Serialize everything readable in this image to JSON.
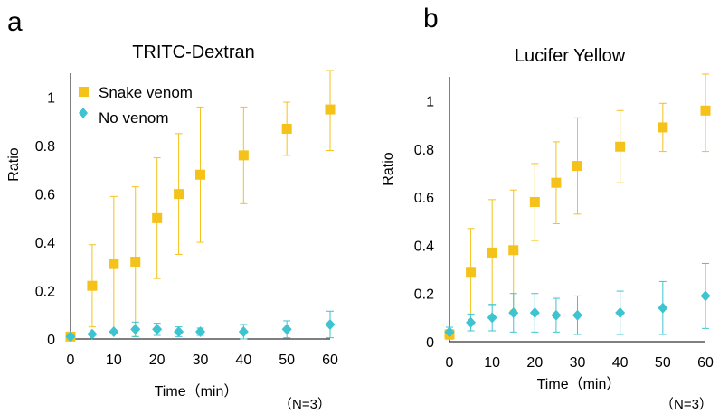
{
  "panels": [
    {
      "label": "a",
      "note": "（N=3）",
      "chart_data": {
        "type": "scatter",
        "title": "TRITC-Dextran",
        "xlabel": "Time（min）",
        "ylabel": "Ratio",
        "x_ticks": [
          0,
          10,
          20,
          30,
          40,
          50,
          60
        ],
        "y_ticks": [
          0,
          0.2,
          0.4,
          0.6,
          0.8,
          1
        ],
        "y_tick_labels": [
          "0",
          "0.2",
          "0.4",
          "0.6",
          "0.8",
          "1"
        ],
        "xlim": [
          0,
          60
        ],
        "ylim": [
          0,
          1.1
        ],
        "grid": false,
        "legend": "top-left",
        "series": [
          {
            "name": "Snake venom",
            "marker": "square",
            "color": "#F5C21A",
            "points": [
              {
                "x": 0,
                "y": 0.01,
                "err": 0.0
              },
              {
                "x": 5,
                "y": 0.22,
                "err": 0.17
              },
              {
                "x": 10,
                "y": 0.31,
                "err": 0.28
              },
              {
                "x": 15,
                "y": 0.32,
                "err": 0.31
              },
              {
                "x": 20,
                "y": 0.5,
                "err": 0.25
              },
              {
                "x": 25,
                "y": 0.6,
                "err": 0.25
              },
              {
                "x": 30,
                "y": 0.68,
                "err": 0.28
              },
              {
                "x": 40,
                "y": 0.76,
                "err": 0.2
              },
              {
                "x": 50,
                "y": 0.87,
                "err": 0.11
              },
              {
                "x": 60,
                "y": 0.95,
                "err": 0.17
              }
            ]
          },
          {
            "name": "No venom",
            "marker": "diamond",
            "color": "#3DC4D0",
            "points": [
              {
                "x": 0,
                "y": 0.01,
                "err": 0.0
              },
              {
                "x": 5,
                "y": 0.02,
                "err": 0.0
              },
              {
                "x": 10,
                "y": 0.03,
                "err": 0.0
              },
              {
                "x": 15,
                "y": 0.04,
                "err": 0.03
              },
              {
                "x": 20,
                "y": 0.04,
                "err": 0.025
              },
              {
                "x": 25,
                "y": 0.03,
                "err": 0.02
              },
              {
                "x": 30,
                "y": 0.03,
                "err": 0.015
              },
              {
                "x": 40,
                "y": 0.03,
                "err": 0.03
              },
              {
                "x": 50,
                "y": 0.04,
                "err": 0.035
              },
              {
                "x": 60,
                "y": 0.06,
                "err": 0.055
              }
            ]
          }
        ]
      }
    },
    {
      "label": "b",
      "note": "（N=3）",
      "chart_data": {
        "type": "scatter",
        "title": "Lucifer Yellow",
        "xlabel": "Time（min）",
        "ylabel": "Ratio",
        "x_ticks": [
          0,
          10,
          20,
          30,
          40,
          50,
          60
        ],
        "y_ticks": [
          0,
          0.2,
          0.4,
          0.6,
          0.8,
          1
        ],
        "y_tick_labels": [
          "0",
          "0.2",
          "0.4",
          "0.6",
          "0.8",
          "1"
        ],
        "xlim": [
          0,
          60
        ],
        "ylim": [
          0,
          1.1
        ],
        "grid": false,
        "legend": "none",
        "series": [
          {
            "name": "Snake venom",
            "marker": "square",
            "color": "#F5C21A",
            "points": [
              {
                "x": 0,
                "y": 0.03,
                "err": 0.02
              },
              {
                "x": 5,
                "y": 0.29,
                "err": 0.18
              },
              {
                "x": 10,
                "y": 0.37,
                "err": 0.22
              },
              {
                "x": 15,
                "y": 0.38,
                "err": 0.25
              },
              {
                "x": 20,
                "y": 0.58,
                "err": 0.16
              },
              {
                "x": 25,
                "y": 0.66,
                "err": 0.17
              },
              {
                "x": 30,
                "y": 0.73,
                "err": 0.2
              },
              {
                "x": 40,
                "y": 0.81,
                "err": 0.15
              },
              {
                "x": 50,
                "y": 0.89,
                "err": 0.1
              },
              {
                "x": 60,
                "y": 0.96,
                "err": 0.17
              }
            ]
          },
          {
            "name": "No venom",
            "marker": "diamond",
            "color": "#3DC4D0",
            "points": [
              {
                "x": 0,
                "y": 0.04,
                "err": 0.02
              },
              {
                "x": 5,
                "y": 0.08,
                "err": 0.035
              },
              {
                "x": 10,
                "y": 0.1,
                "err": 0.055
              },
              {
                "x": 15,
                "y": 0.12,
                "err": 0.08
              },
              {
                "x": 20,
                "y": 0.12,
                "err": 0.08
              },
              {
                "x": 25,
                "y": 0.11,
                "err": 0.07
              },
              {
                "x": 30,
                "y": 0.11,
                "err": 0.08
              },
              {
                "x": 40,
                "y": 0.12,
                "err": 0.09
              },
              {
                "x": 50,
                "y": 0.14,
                "err": 0.11
              },
              {
                "x": 60,
                "y": 0.19,
                "err": 0.135
              }
            ]
          }
        ]
      }
    }
  ]
}
